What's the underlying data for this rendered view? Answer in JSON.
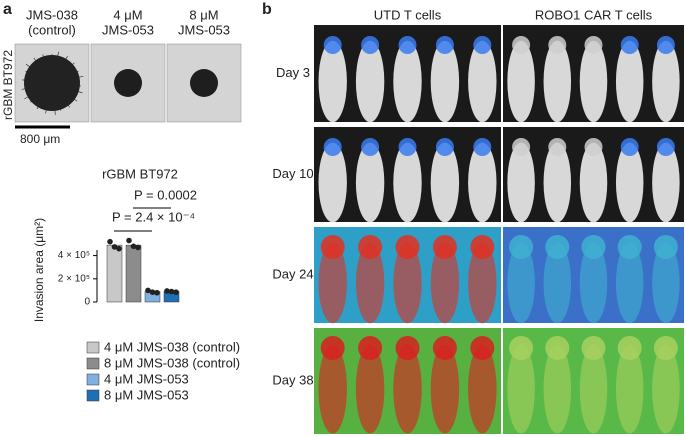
{
  "panels": {
    "a": "a",
    "b": "b"
  },
  "left": {
    "image_labels": [
      [
        "JMS-038",
        "(control)"
      ],
      [
        "4 μM",
        "JMS-053"
      ],
      [
        "8 μM",
        "JMS-053"
      ]
    ],
    "row_label": "rGBM BT972",
    "scale_bar": "800 μm"
  },
  "chart_data": {
    "type": "bar",
    "title": "rGBM BT972",
    "y_label": "Invasion area (μm²)",
    "categories": [
      "4 μM JMS-038 (control)",
      "8 μM JMS-038 (control)",
      "4 μM JMS-053",
      "8 μM JMS-053"
    ],
    "values": [
      490000,
      490000,
      90000,
      90000
    ],
    "points": [
      [
        520000,
        475000,
        460000
      ],
      [
        530000,
        480000,
        470000
      ],
      [
        100000,
        85000,
        80000
      ],
      [
        95000,
        90000,
        85000
      ]
    ],
    "colors": [
      "#c8c8c8",
      "#8c8c8c",
      "#7fb0e0",
      "#1f6fb5"
    ],
    "ylim": [
      0,
      500000
    ],
    "yticks": [
      0,
      {
        "value": 200000,
        "label": "2 × 10⁵"
      },
      {
        "value": 400000,
        "label": "4 × 10⁵"
      }
    ],
    "annotations": [
      "P = 2.4 × 10⁻⁴",
      "P = 0.0002"
    ]
  },
  "right": {
    "columns": [
      "UTD T cells",
      "ROBO1 CAR T cells"
    ],
    "rows": [
      "Day 3",
      "Day 10",
      "Day 24",
      "Day 38"
    ]
  }
}
